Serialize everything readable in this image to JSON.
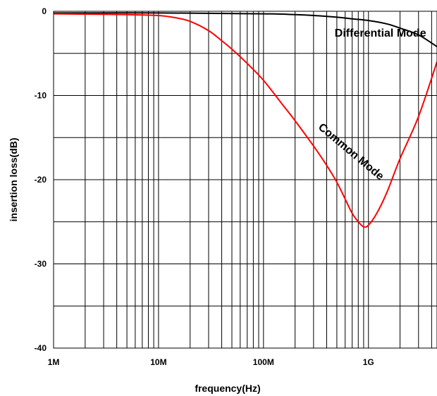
{
  "chart_data": {
    "type": "line",
    "xlabel": "frequency(Hz)",
    "ylabel": "insertion loss(dB)",
    "x_scale": "log",
    "xlim": [
      1000000,
      4500000000
    ],
    "ylim": [
      -40,
      0
    ],
    "x_ticks": [
      {
        "value": 1000000,
        "label": "1M"
      },
      {
        "value": 10000000,
        "label": "10M"
      },
      {
        "value": 100000000,
        "label": "100M"
      },
      {
        "value": 1000000000,
        "label": "1G"
      }
    ],
    "y_ticks": [
      {
        "value": 0,
        "label": "0"
      },
      {
        "value": -10,
        "label": "-10"
      },
      {
        "value": -20,
        "label": "-20"
      },
      {
        "value": -30,
        "label": "-30"
      },
      {
        "value": -40,
        "label": "-40"
      }
    ],
    "grid": true,
    "series": [
      {
        "name": "Differential Mode",
        "color": "#000000",
        "x": [
          1000000,
          10000000,
          100000000,
          200000000,
          300000000,
          500000000,
          700000000,
          1000000000,
          1500000000,
          2000000000,
          3000000000,
          4500000000
        ],
        "y": [
          -0.2,
          -0.2,
          -0.3,
          -0.4,
          -0.5,
          -0.7,
          -0.9,
          -1.1,
          -1.5,
          -2.0,
          -2.8,
          -4.2
        ]
      },
      {
        "name": "Common Mode",
        "color": "#ff0000",
        "x": [
          1000000,
          5000000,
          10000000,
          15000000,
          20000000,
          30000000,
          40000000,
          50000000,
          70000000,
          100000000,
          150000000,
          200000000,
          300000000,
          400000000,
          500000000,
          600000000,
          700000000,
          800000000,
          900000000,
          1000000000,
          1200000000,
          1500000000,
          2000000000,
          3000000000,
          4500000000
        ],
        "y": [
          -0.3,
          -0.4,
          -0.5,
          -0.8,
          -1.2,
          -2.3,
          -3.5,
          -4.5,
          -6.2,
          -8.2,
          -11.0,
          -13.0,
          -16.0,
          -18.3,
          -20.3,
          -22.3,
          -24.0,
          -25.0,
          -25.6,
          -25.4,
          -24.0,
          -21.5,
          -17.5,
          -12.5,
          -6.0
        ]
      }
    ],
    "annotations": [
      {
        "text": "Differential Mode",
        "x": 1300000000,
        "y": -3.0,
        "rotate": 0
      },
      {
        "text": "Common Mode",
        "x": 650000000,
        "y": -17.0,
        "rotate": 40
      }
    ]
  }
}
